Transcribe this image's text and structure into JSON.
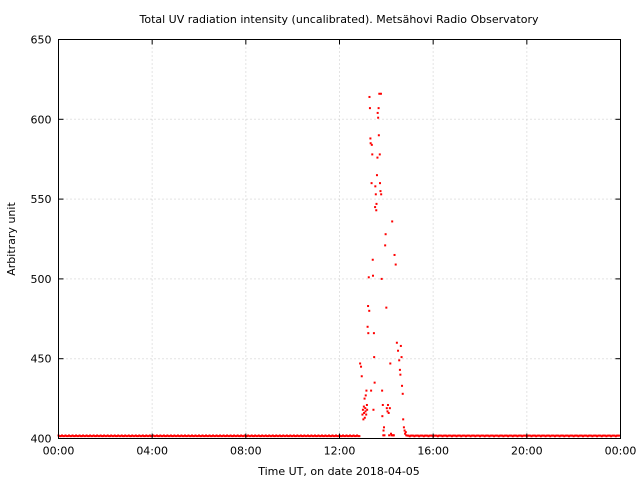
{
  "chart_data": {
    "type": "scatter",
    "title": "Total UV radiation intensity (uncalibrated). Metsähovi Radio Observatory",
    "xlabel": "Time UT, on date 2018-04-05",
    "ylabel": "Arbitrary unit",
    "xlim": [
      0,
      24
    ],
    "ylim": [
      400,
      650
    ],
    "x_ticks": [
      0,
      4,
      8,
      12,
      16,
      20,
      24
    ],
    "x_tick_labels": [
      "00:00",
      "04:00",
      "08:00",
      "12:00",
      "16:00",
      "20:00",
      "00:00"
    ],
    "y_ticks": [
      400,
      450,
      500,
      550,
      600,
      650
    ],
    "y_tick_labels": [
      "400",
      "450",
      "500",
      "550",
      "600",
      "650"
    ],
    "grid": true,
    "legend": "none",
    "point_color": "#ff0000",
    "baseline": {
      "x_start": 0.0,
      "x_end": 12.85,
      "x_step": 0.05,
      "y": 401.5,
      "x_start_2": 14.9,
      "x_end_2": 24.0,
      "y_2": 401.8
    },
    "series": [
      {
        "x": [
          12.88,
          12.92,
          12.95,
          12.98,
          13.0,
          13.02,
          13.04,
          13.05,
          13.07,
          13.08,
          13.1,
          13.11,
          13.12,
          13.14,
          13.15,
          13.17,
          13.18,
          13.2,
          13.22,
          13.23,
          13.25,
          13.27,
          13.28,
          13.3,
          13.32,
          13.33,
          13.35,
          13.37,
          13.38,
          13.4,
          13.42,
          13.43,
          13.45,
          13.47,
          13.48,
          13.5,
          13.52,
          13.53,
          13.55,
          13.57,
          13.58,
          13.6,
          13.62,
          13.63,
          13.65,
          13.67,
          13.68,
          13.7,
          13.72,
          13.73,
          13.75,
          13.77,
          13.78,
          13.8,
          13.82,
          13.83,
          13.85,
          13.87,
          13.88,
          13.9,
          13.92,
          13.95,
          13.97,
          14.0,
          14.02,
          14.05,
          14.07,
          14.1,
          14.12,
          14.15,
          14.17,
          14.2,
          14.22,
          14.25,
          14.27,
          14.3,
          14.32,
          14.35,
          14.4,
          14.45,
          14.5,
          14.55,
          14.58,
          14.6,
          14.62,
          14.65,
          14.67,
          14.7,
          14.72,
          14.75,
          14.78,
          14.8,
          14.83,
          14.85
        ],
        "y": [
          447,
          445,
          439,
          415,
          418,
          412,
          420,
          416,
          425,
          413,
          419,
          417,
          427,
          415,
          430,
          421,
          418,
          470,
          483,
          466,
          501,
          480,
          614,
          607,
          588,
          585,
          430,
          560,
          584,
          578,
          512,
          502,
          418,
          466,
          451,
          435,
          545,
          558,
          553,
          543,
          547,
          565,
          576,
          604,
          601,
          607,
          590,
          616,
          578,
          560,
          555,
          616,
          553,
          500,
          430,
          414,
          421,
          402,
          405,
          407,
          402,
          521,
          528,
          482,
          419,
          417,
          421,
          416,
          402,
          419,
          447,
          403,
          402,
          536,
          402,
          402,
          402,
          515,
          509,
          460,
          455,
          449,
          443,
          440,
          458,
          451,
          433,
          428,
          412,
          407,
          405,
          403,
          404,
          402
        ]
      }
    ]
  }
}
